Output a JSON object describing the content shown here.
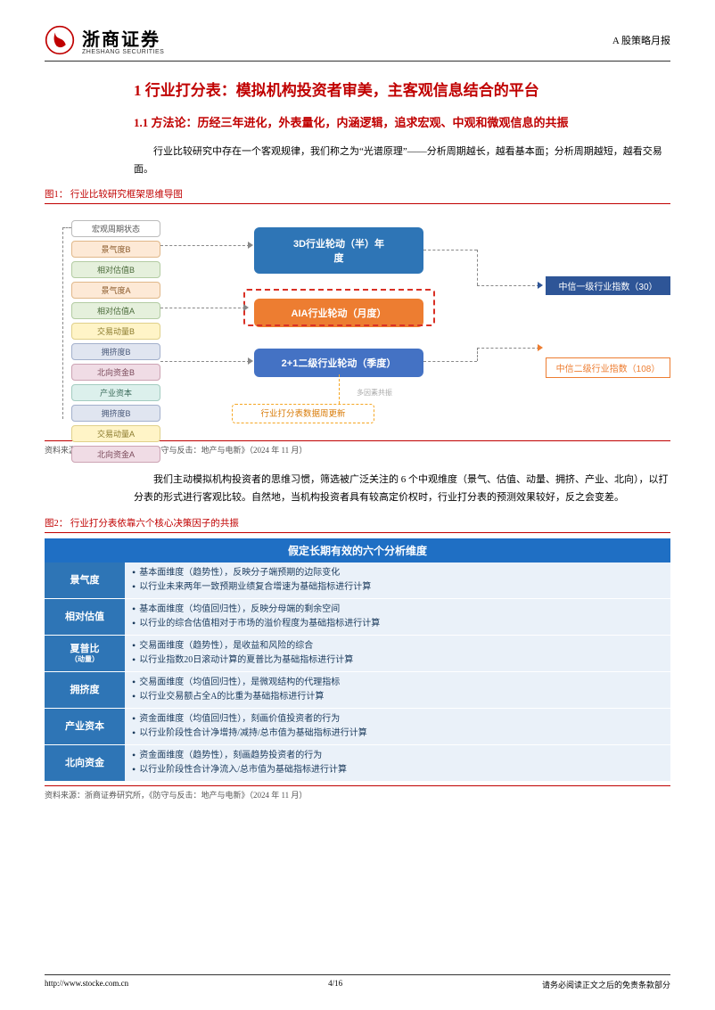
{
  "header": {
    "company_cn": "浙商证券",
    "company_en": "ZHESHANG SECURITIES",
    "doc_type": "A 股策略月报",
    "logo_color": "#c00000"
  },
  "section1": {
    "title": "1 行业打分表：模拟机构投资者审美，主客观信息结合的平台",
    "sub_title": "1.1 方法论：历经三年进化，外表量化，内涵逻辑，追求宏观、中观和微观信息的共振",
    "para1": "行业比较研究中存在一个客观规律，我们称之为“光谱原理”——分析周期越长，越看基本面；分析周期越短，越看交易面。"
  },
  "figure1": {
    "caption": "图1：  行业比较研究框架思维导图",
    "source": "资料来源：浙商证券研究所，《防守与反击：地产与电新》（2024 年 11 月）",
    "left_tags": [
      {
        "text": "宏观周期状态",
        "bg": "#ffffff",
        "color": "#555",
        "border": "#bbb"
      },
      {
        "text": "景气度B",
        "bg": "#fde9d6",
        "color": "#8a5a2c",
        "border": "#e0b88a"
      },
      {
        "text": "相对估值B",
        "bg": "#e5f0dc",
        "color": "#4a6a3a",
        "border": "#b3cca3"
      },
      {
        "text": "景气度A",
        "bg": "#fde9d6",
        "color": "#8a5a2c",
        "border": "#e0b88a"
      },
      {
        "text": "相对估值A",
        "bg": "#e5f0dc",
        "color": "#4a6a3a",
        "border": "#b3cca3"
      },
      {
        "text": "交易动量B",
        "bg": "#fff4c7",
        "color": "#8a7a2c",
        "border": "#e0d08a"
      },
      {
        "text": "拥挤度B",
        "bg": "#e0e5f0",
        "color": "#4a5a7a",
        "border": "#a3b0cc"
      },
      {
        "text": "北向资金B",
        "bg": "#f0dce5",
        "color": "#7a4a5a",
        "border": "#cca3b3"
      },
      {
        "text": "产业资本",
        "bg": "#dcf0ec",
        "color": "#3a6a5a",
        "border": "#a3ccc0"
      },
      {
        "text": "拥挤度B",
        "bg": "#e0e5f0",
        "color": "#4a5a7a",
        "border": "#a3b0cc"
      },
      {
        "text": "交易动量A",
        "bg": "#fff4c7",
        "color": "#8a7a2c",
        "border": "#e0d08a"
      },
      {
        "text": "北向资金A",
        "bg": "#f0dce5",
        "color": "#7a4a5a",
        "border": "#cca3b3"
      }
    ],
    "mid_blocks": [
      {
        "text1": "3D行业轮动（半）年",
        "text2": "度",
        "bg": "#2e75b6"
      },
      {
        "text1": "AIA行业轮动（月度）",
        "text2": "",
        "bg": "#ed7d31"
      },
      {
        "text1": "2+1二级行业轮动（季度）",
        "text2": "",
        "bg": "#4472c4"
      }
    ],
    "right_blocks": [
      {
        "text": "中信一级行业指数（30）",
        "bg": "#2e5597",
        "color": "#fff"
      },
      {
        "text": "中信二级行业指数（108）",
        "bg": "#ffffff",
        "color": "#ed7d31",
        "border": "#ed7d31"
      }
    ],
    "bottom_block": "行业打分表数据周更新",
    "note": "多因素共振"
  },
  "para2": "我们主动模拟机构投资者的思维习惯，筛选被广泛关注的 6 个中观维度（景气、估值、动量、拥挤、产业、北向），以打分表的形式进行客观比较。自然地，当机构投资者具有较高定价权时，行业打分表的预测效果较好，反之会变差。",
  "figure2": {
    "caption": "图2：  行业打分表依靠六个核心决策因子的共振",
    "source": "资料来源：浙商证券研究所，《防守与反击：地产与电新》（2024 年 11 月）",
    "header": "假定长期有效的六个分析维度",
    "header_bg": "#1f6fc4",
    "rows": [
      {
        "label": "景气度",
        "sub": "",
        "bg": "#2e75b6",
        "lines": [
          "基本面维度（趋势性），反映分子端预期的边际变化",
          "以行业未来两年一致预期业绩复合增速为基础指标进行计算"
        ]
      },
      {
        "label": "相对估值",
        "sub": "",
        "bg": "#2e75b6",
        "lines": [
          "基本面维度（均值回归性），反映分母端的剩余空间",
          "以行业的综合估值相对于市场的溢价程度为基础指标进行计算"
        ]
      },
      {
        "label": "夏普比",
        "sub": "（动量）",
        "bg": "#2e75b6",
        "lines": [
          "交易面维度（趋势性），是收益和风险的综合",
          "以行业指数20日滚动计算的夏普比为基础指标进行计算"
        ]
      },
      {
        "label": "拥挤度",
        "sub": "",
        "bg": "#2e75b6",
        "lines": [
          "交易面维度（均值回归性），是微观结构的代理指标",
          "以行业交易额占全A的比重为基础指标进行计算"
        ]
      },
      {
        "label": "产业资本",
        "sub": "",
        "bg": "#2e75b6",
        "lines": [
          "资金面维度（均值回归性），刻画价值投资者的行为",
          "以行业阶段性合计净增持/减持/总市值为基础指标进行计算"
        ]
      },
      {
        "label": "北向资金",
        "sub": "",
        "bg": "#2e75b6",
        "lines": [
          "资金面维度（趋势性），刻画趋势投资者的行为",
          "以行业阶段性合计净流入/总市值为基础指标进行计算"
        ]
      }
    ]
  },
  "footer": {
    "url": "http://www.stocke.com.cn",
    "page": "4/16",
    "disclaimer": "请务必阅读正文之后的免责条款部分"
  }
}
